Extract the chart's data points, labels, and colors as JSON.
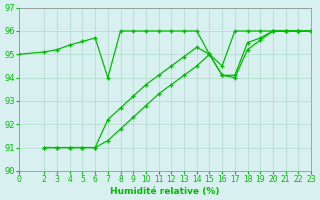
{
  "xlabel": "Humidité relative (%)",
  "background_color": "#d8f0f0",
  "line_color": "#00bb00",
  "grid_color": "#b0d8cc",
  "ylim": [
    90,
    97
  ],
  "xlim": [
    0,
    23
  ],
  "yticks": [
    90,
    91,
    92,
    93,
    94,
    95,
    96,
    97
  ],
  "xticks": [
    0,
    2,
    3,
    4,
    5,
    6,
    7,
    8,
    9,
    10,
    11,
    12,
    13,
    14,
    15,
    16,
    17,
    18,
    19,
    20,
    21,
    22,
    23
  ],
  "series": [
    {
      "x": [
        0,
        2,
        3,
        4,
        5,
        6,
        7,
        8,
        9,
        10,
        11,
        12,
        13,
        14,
        15,
        16,
        17,
        18,
        19,
        20,
        21,
        22,
        23
      ],
      "y": [
        95,
        95.1,
        95.2,
        95.4,
        95.55,
        95.7,
        94.0,
        96,
        96,
        96,
        96,
        96,
        96,
        96,
        95,
        94.5,
        96,
        96,
        96,
        96,
        96,
        96,
        96
      ]
    },
    {
      "x": [
        2,
        3,
        4,
        5,
        6,
        7,
        8,
        9,
        10,
        11,
        12,
        13,
        14,
        15,
        16,
        17,
        18,
        19,
        20,
        21,
        22,
        23
      ],
      "y": [
        91,
        91,
        91,
        91,
        91,
        92.2,
        92.7,
        93.2,
        93.7,
        94.1,
        94.5,
        94.9,
        95.3,
        95.0,
        94.1,
        94.1,
        95.5,
        95.7,
        96,
        96,
        96,
        96
      ]
    },
    {
      "x": [
        2,
        3,
        4,
        5,
        6,
        7,
        8,
        9,
        10,
        11,
        12,
        13,
        14,
        15,
        16,
        17,
        18,
        19,
        20,
        21,
        22,
        23
      ],
      "y": [
        91,
        91,
        91,
        91,
        91,
        91.3,
        91.8,
        92.3,
        92.8,
        93.3,
        93.7,
        94.1,
        94.5,
        95.0,
        94.1,
        94.0,
        95.2,
        95.6,
        96,
        96,
        96,
        96
      ]
    }
  ]
}
